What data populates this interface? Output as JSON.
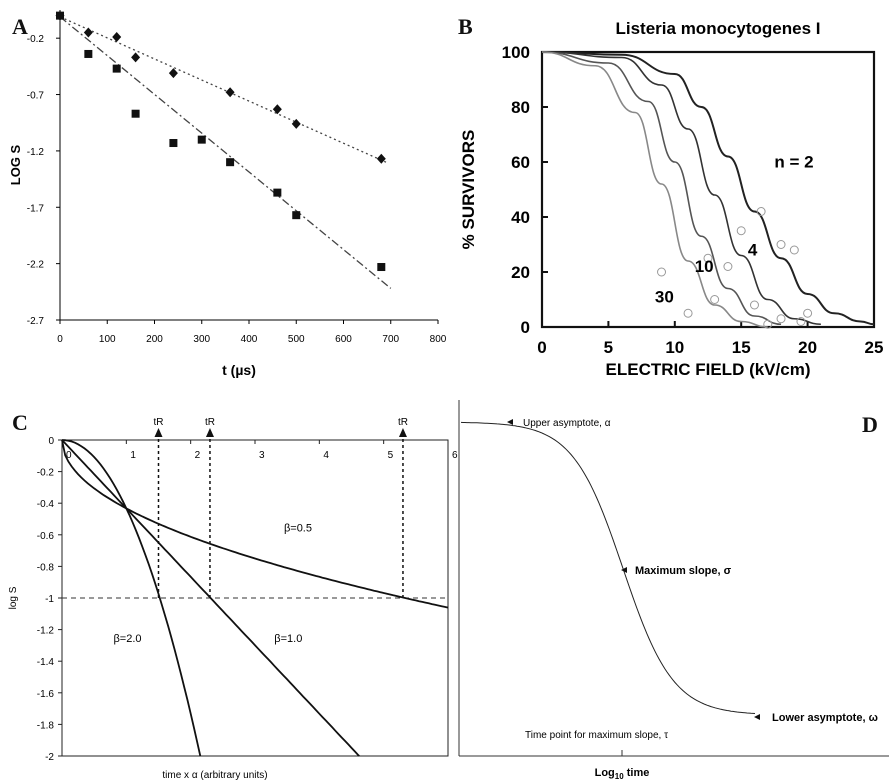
{
  "panels": [
    {
      "label": "A"
    },
    {
      "label": "B"
    },
    {
      "label": "C"
    },
    {
      "label": "D"
    }
  ],
  "chart_data": [
    {
      "type": "scatter",
      "panel": "A",
      "title": "",
      "xlabel": "t (µs)",
      "ylabel": "LOG S",
      "xlim": [
        0,
        800
      ],
      "ylim": [
        -2.7,
        0.05
      ],
      "xticks": [
        "0",
        "100",
        "200",
        "300",
        "400",
        "500",
        "600",
        "700",
        "800"
      ],
      "yticks": [
        "-0.2",
        "-0.7",
        "-1.2",
        "-1.7",
        "-2.2",
        "-2.7"
      ],
      "grid": false,
      "series": [
        {
          "marker": "diamond",
          "line": "dotted",
          "x": [
            0,
            60,
            120,
            160,
            240,
            360,
            460,
            500,
            680
          ],
          "y": [
            0,
            -0.15,
            -0.19,
            -0.37,
            -0.51,
            -0.68,
            -0.83,
            -0.96,
            -1.27
          ],
          "fit": [
            [
              0,
              -0.01
            ],
            [
              690,
              -1.3
            ]
          ]
        },
        {
          "marker": "square",
          "line": "dashed",
          "x": [
            0,
            60,
            120,
            160,
            240,
            300,
            360,
            460,
            500,
            680
          ],
          "y": [
            0,
            -0.34,
            -0.47,
            -0.87,
            -1.13,
            -1.1,
            -1.3,
            -1.57,
            -1.77,
            -2.23
          ],
          "fit": [
            [
              0,
              -0.01
            ],
            [
              700,
              -2.42
            ]
          ]
        }
      ]
    },
    {
      "type": "line",
      "panel": "B",
      "title": "Listeria monocytogenes I",
      "xlabel": "ELECTRIC FIELD (kV/cm)",
      "ylabel": "% SURVIVORS",
      "xlim": [
        0,
        25
      ],
      "ylim": [
        0,
        100
      ],
      "xticks": [
        "0",
        "5",
        "10",
        "15",
        "20",
        "25"
      ],
      "yticks": [
        "0",
        "20",
        "40",
        "60",
        "80",
        "100"
      ],
      "curve_labels": [
        "n = 2",
        "4",
        "10",
        "30"
      ],
      "series": [
        {
          "name": "n = 2",
          "x": [
            0,
            6,
            10,
            12,
            14,
            16,
            18,
            20,
            22,
            24,
            25
          ],
          "y": [
            100,
            99,
            92,
            80,
            62,
            42,
            25,
            12,
            5,
            2,
            1
          ]
        },
        {
          "name": "4",
          "x": [
            0,
            6,
            9,
            11,
            13,
            15,
            17,
            19,
            21
          ],
          "y": [
            100,
            98,
            88,
            72,
            48,
            26,
            10,
            3,
            1
          ]
        },
        {
          "name": "10",
          "x": [
            0,
            5,
            8,
            10,
            12,
            14,
            16,
            18
          ],
          "y": [
            100,
            96,
            82,
            60,
            33,
            14,
            4,
            1
          ]
        },
        {
          "name": "30",
          "x": [
            0,
            4,
            7,
            9,
            11,
            13,
            15,
            17
          ],
          "y": [
            100,
            95,
            78,
            52,
            24,
            8,
            2,
            0
          ]
        }
      ],
      "scatter": [
        [
          20,
          5
        ],
        [
          18,
          30
        ],
        [
          16.5,
          42
        ],
        [
          19,
          28
        ],
        [
          15,
          35
        ],
        [
          14,
          22
        ],
        [
          12.5,
          25
        ],
        [
          9,
          20
        ],
        [
          13,
          10
        ],
        [
          16,
          8
        ],
        [
          11,
          5
        ],
        [
          18,
          3
        ],
        [
          19.5,
          2
        ],
        [
          17,
          1
        ]
      ]
    },
    {
      "type": "line",
      "panel": "C",
      "title": "",
      "xlabel": "time x α (arbitrary units)",
      "ylabel": "log S",
      "xlim": [
        0,
        6
      ],
      "ylim": [
        -2,
        0
      ],
      "xticks": [
        "0",
        "1",
        "2",
        "3",
        "4",
        "5",
        "6"
      ],
      "yticks": [
        "0",
        "-0.2",
        "-0.4",
        "-0.6",
        "-0.8",
        "-1",
        "-1.2",
        "-1.4",
        "-1.6",
        "-1.8",
        "-2"
      ],
      "reference_line": -1,
      "marker_label": "tR",
      "markers_x": [
        1.5,
        2.3,
        5.3
      ],
      "series": [
        {
          "name": "β=0.5",
          "beta": 0.5
        },
        {
          "name": "β=1.0",
          "beta": 1.0
        },
        {
          "name": "β=2.0",
          "beta": 2.0
        }
      ]
    },
    {
      "type": "line",
      "panel": "D",
      "title": "",
      "xlabel": "Log10 time",
      "xlabel_main": "Log",
      "xlabel_sub": "10",
      "xlabel_rest": " time",
      "ylabel": "",
      "annotations": [
        {
          "label": "Upper asymptote, α"
        },
        {
          "label": "Maximum slope, σ"
        },
        {
          "label": "Lower asymptote, ω"
        },
        {
          "label": "Time point for maximum slope, τ"
        }
      ]
    }
  ]
}
